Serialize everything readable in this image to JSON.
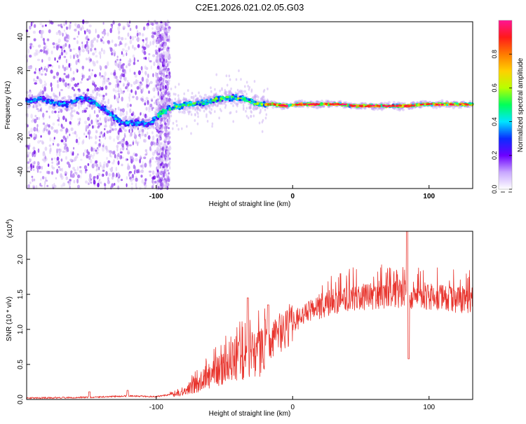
{
  "title": "C2E1.2026.021.02.05.G03",
  "colors": {
    "snr_line": "#e8342d",
    "frame": "#000000",
    "point_faint": "#d9c4f5",
    "point_mid": "#9a55ee",
    "point_dark": "#6a00e6"
  },
  "chart_data": [
    {
      "type": "heatmap",
      "name": "spectrogram",
      "title": "C2E1.2026.021.02.05.G03",
      "xlabel": "Height of straight line (km)",
      "ylabel": "Frequency (Hz)",
      "xlim": [
        -195,
        132
      ],
      "ylim": [
        -50,
        49
      ],
      "x_ticks": [
        -100,
        0,
        100
      ],
      "x_tick_labels": [
        "-100",
        "0",
        "100"
      ],
      "y_ticks": [
        -40,
        -20,
        0,
        20,
        40
      ],
      "y_tick_labels": [
        "-40",
        "-20",
        "0",
        "20",
        "40"
      ],
      "ridge": [
        {
          "x": -195,
          "y": 2
        },
        {
          "x": -185,
          "y": 3
        },
        {
          "x": -175,
          "y": 1
        },
        {
          "x": -165,
          "y": 0
        },
        {
          "x": -155,
          "y": 4
        },
        {
          "x": -145,
          "y": 1
        },
        {
          "x": -135,
          "y": -5
        },
        {
          "x": -125,
          "y": -11
        },
        {
          "x": -115,
          "y": -11
        },
        {
          "x": -105,
          "y": -12
        },
        {
          "x": -95,
          "y": -4
        },
        {
          "x": -85,
          "y": -1
        },
        {
          "x": -75,
          "y": 0
        },
        {
          "x": -65,
          "y": 1
        },
        {
          "x": -55,
          "y": 3
        },
        {
          "x": -45,
          "y": 4
        },
        {
          "x": -35,
          "y": 3
        },
        {
          "x": -25,
          "y": 0
        },
        {
          "x": -15,
          "y": 0
        },
        {
          "x": -5,
          "y": -1
        },
        {
          "x": 5,
          "y": 0
        },
        {
          "x": 15,
          "y": 0
        },
        {
          "x": 25,
          "y": 0
        },
        {
          "x": 35,
          "y": 0
        },
        {
          "x": 45,
          "y": -1
        },
        {
          "x": 55,
          "y": -1
        },
        {
          "x": 65,
          "y": -1
        },
        {
          "x": 75,
          "y": -1
        },
        {
          "x": 85,
          "y": -1
        },
        {
          "x": 95,
          "y": 0
        },
        {
          "x": 105,
          "y": 0
        },
        {
          "x": 115,
          "y": 0
        },
        {
          "x": 125,
          "y": 0
        },
        {
          "x": 132,
          "y": 0
        }
      ],
      "colorbar": {
        "label": "Normalized spectral amplitude",
        "range": [
          0,
          1
        ],
        "ticks": [
          0.0,
          0.2,
          0.4,
          0.6,
          0.8
        ],
        "tick_labels": [
          "0.0",
          "0.2",
          "0.4",
          "0.6",
          "0.8"
        ],
        "stops": [
          "#ffffff",
          "#c9a8ff",
          "#6c00ff",
          "#0a2cff",
          "#00e5ff",
          "#00ff5a",
          "#b8ff00",
          "#ffd000",
          "#ff7a00",
          "#ff1a1a",
          "#ff1493"
        ]
      }
    },
    {
      "type": "line",
      "name": "snr",
      "xlabel": "Height of straight line (km)",
      "ylabel": "SNR (10 * v/v)",
      "y_scale_label": "(x10",
      "y_scale_exp": "4",
      "y_scale_close": ")",
      "xlim": [
        -195,
        132
      ],
      "ylim": [
        0,
        2.4
      ],
      "x_ticks": [
        -100,
        0,
        100
      ],
      "x_tick_labels": [
        "-100",
        "0",
        "100"
      ],
      "y_ticks": [
        0.0,
        0.5,
        1.0,
        1.5,
        2.0
      ],
      "y_tick_labels": [
        "0.0",
        "0.5",
        "1.0",
        "1.5",
        "2.0"
      ],
      "envelope": [
        {
          "x": -195,
          "y": 0.02
        },
        {
          "x": -150,
          "y": 0.03
        },
        {
          "x": -120,
          "y": 0.05
        },
        {
          "x": -100,
          "y": 0.04
        },
        {
          "x": -90,
          "y": 0.07
        },
        {
          "x": -80,
          "y": 0.12
        },
        {
          "x": -70,
          "y": 0.22
        },
        {
          "x": -60,
          "y": 0.35
        },
        {
          "x": -50,
          "y": 0.45
        },
        {
          "x": -40,
          "y": 0.55
        },
        {
          "x": -30,
          "y": 0.65
        },
        {
          "x": -20,
          "y": 0.74
        },
        {
          "x": -10,
          "y": 0.95
        },
        {
          "x": 0,
          "y": 1.1
        },
        {
          "x": 10,
          "y": 1.22
        },
        {
          "x": 20,
          "y": 1.33
        },
        {
          "x": 30,
          "y": 1.4
        },
        {
          "x": 40,
          "y": 1.45
        },
        {
          "x": 50,
          "y": 1.47
        },
        {
          "x": 60,
          "y": 1.48
        },
        {
          "x": 70,
          "y": 1.5
        },
        {
          "x": 80,
          "y": 1.5
        },
        {
          "x": 90,
          "y": 1.48
        },
        {
          "x": 100,
          "y": 1.46
        },
        {
          "x": 110,
          "y": 1.44
        },
        {
          "x": 120,
          "y": 1.43
        },
        {
          "x": 132,
          "y": 1.42
        }
      ],
      "features": [
        {
          "x": -149,
          "y": 0.11
        },
        {
          "x": -121,
          "y": 0.13
        },
        {
          "x": -33,
          "y": 1.45
        },
        {
          "x": -18,
          "y": 1.35
        },
        {
          "x": 84,
          "y": 2.4
        },
        {
          "x": 85,
          "y": 0.58
        }
      ]
    }
  ]
}
